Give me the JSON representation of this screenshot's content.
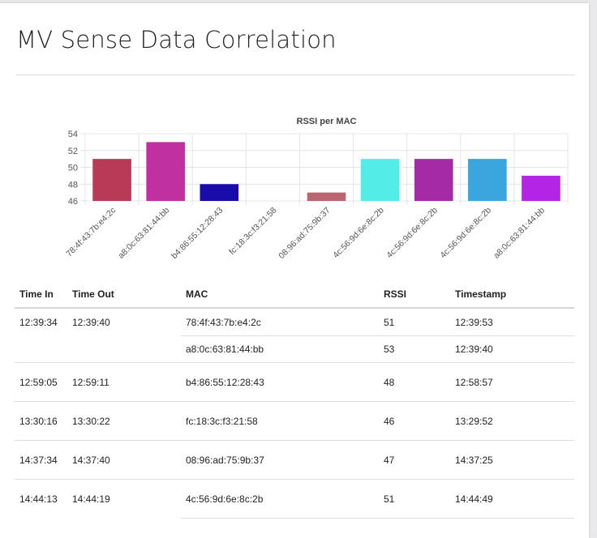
{
  "page": {
    "title": "MV Sense Data Correlation"
  },
  "chart_data": {
    "type": "bar",
    "title": "RSSI per MAC",
    "categories": [
      "78:4f:43:7b:e4:2c",
      "a8:0c:63:81:44:bb",
      "b4:86:55:12:28:43",
      "fc:18:3c:f3:21:58",
      "08:96:ad:75:9b:37",
      "4c:56:9d:6e:8c:2b",
      "4c:56:9d:6e:8c:2b",
      "4c:56:9d:6e:8c:2b",
      "a8:0c:63:81:44:bb"
    ],
    "values": [
      51,
      53,
      48,
      46,
      47,
      51,
      51,
      51,
      49
    ],
    "colors": [
      "#b83a57",
      "#c0309e",
      "#1a0ca8",
      "#8a8a8a",
      "#b96670",
      "#52ede6",
      "#a42ba4",
      "#3aa6de",
      "#b424e4"
    ],
    "ylim": [
      46,
      54
    ],
    "yticks": [
      46,
      48,
      50,
      52,
      54
    ],
    "grid": true,
    "xlabel": "",
    "ylabel": ""
  },
  "table": {
    "headers": {
      "time_in": "Time In",
      "time_out": "Time Out",
      "mac": "MAC",
      "rssi": "RSSI",
      "timestamp": "Timestamp"
    },
    "rows": [
      {
        "kind": "first",
        "time_in": "12:39:34",
        "time_out": "12:39:40",
        "mac": "78:4f:43:7b:e4:2c",
        "rssi": "51",
        "timestamp": "12:39:53"
      },
      {
        "kind": "cont",
        "time_in": "",
        "time_out": "",
        "mac": "a8:0c:63:81:44:bb",
        "rssi": "53",
        "timestamp": "12:39:40"
      },
      {
        "kind": "grp",
        "time_in": "12:59:05",
        "time_out": "12:59:11",
        "mac": "b4:86:55:12:28:43",
        "rssi": "48",
        "timestamp": "12:58:57"
      },
      {
        "kind": "grp",
        "time_in": "13:30:16",
        "time_out": "13:30:22",
        "mac": "fc:18:3c:f3:21:58",
        "rssi": "46",
        "timestamp": "13:29:52"
      },
      {
        "kind": "grp",
        "time_in": "14:37:34",
        "time_out": "14:37:40",
        "mac": "08:96:ad:75:9b:37",
        "rssi": "47",
        "timestamp": "14:37:25"
      },
      {
        "kind": "grp",
        "time_in": "14:44:13",
        "time_out": "14:44:19",
        "mac": "4c:56:9d:6e:8c:2b",
        "rssi": "51",
        "timestamp": "14:44:49"
      }
    ]
  }
}
